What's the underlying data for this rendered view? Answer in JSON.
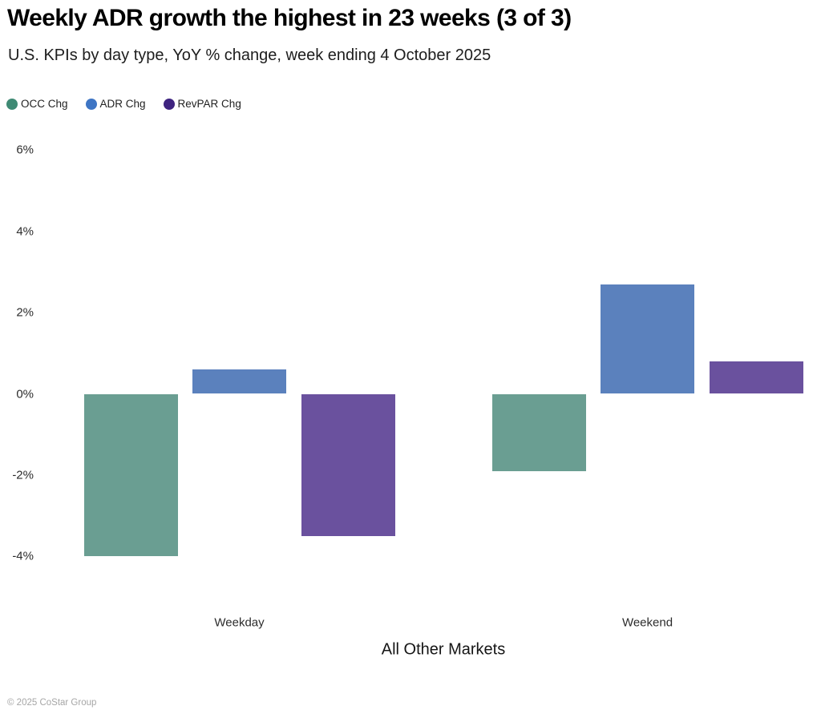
{
  "chart_data": {
    "type": "bar",
    "title": "Weekly ADR growth the highest in 23 weeks (3 of 3)",
    "subtitle": "U.S. KPIs by day type, YoY % change, week ending 4 October 2025",
    "categories": [
      "Weekday",
      "Weekend"
    ],
    "series": [
      {
        "name": "OCC Chg",
        "color": "#6a9e92",
        "legend_color": "#3f8a74",
        "values": [
          -4.0,
          -1.9
        ]
      },
      {
        "name": "ADR Chg",
        "color": "#5b81bd",
        "legend_color": "#3e75c4",
        "values": [
          0.6,
          2.7
        ]
      },
      {
        "name": "RevPAR Chg",
        "color": "#6a519e",
        "legend_color": "#3f2480",
        "values": [
          -3.5,
          0.8
        ]
      }
    ],
    "xlabel": "All Other Markets",
    "ylabel": "",
    "yticks": [
      "6%",
      "4%",
      "2%",
      "0%",
      "-2%",
      "-4%"
    ],
    "ylim": [
      -4,
      6
    ],
    "grid": false,
    "legend_position": "top-left",
    "unit": "%"
  },
  "footer": {
    "copyright": "© 2025 CoStar Group"
  }
}
